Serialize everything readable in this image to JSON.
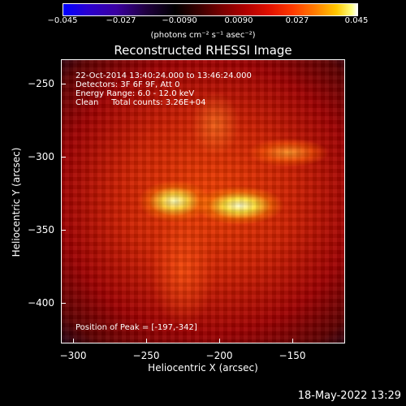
{
  "colorbar": {
    "ticks": [
      "−0.045",
      "−0.027",
      "−0.0090",
      "0.0090",
      "0.027",
      "0.045"
    ],
    "unit_label": "(photons cm⁻² s⁻¹ asec⁻²)"
  },
  "plot": {
    "title": "Reconstructed RHESSI Image",
    "info_lines": [
      "22-Oct-2014 13:40:24.000 to 13:46:24.000",
      "Detectors: 3F 6F 9F, Att 0",
      "Energy Range: 6.0 - 12.0 keV",
      "Clean     Total counts: 3.26E+04"
    ],
    "peak_text": "Position of Peak = [-197,-342]",
    "x_axis_label": "Heliocentric X (arcsec)",
    "y_axis_label": "Heliocentric Y (arcsec)",
    "x_ticks": [
      "−300",
      "−250",
      "−200",
      "−150"
    ],
    "y_ticks": [
      "−250",
      "−300",
      "−350",
      "−400"
    ]
  },
  "footer": {
    "timestamp": "18-May-2022 13:29"
  }
}
